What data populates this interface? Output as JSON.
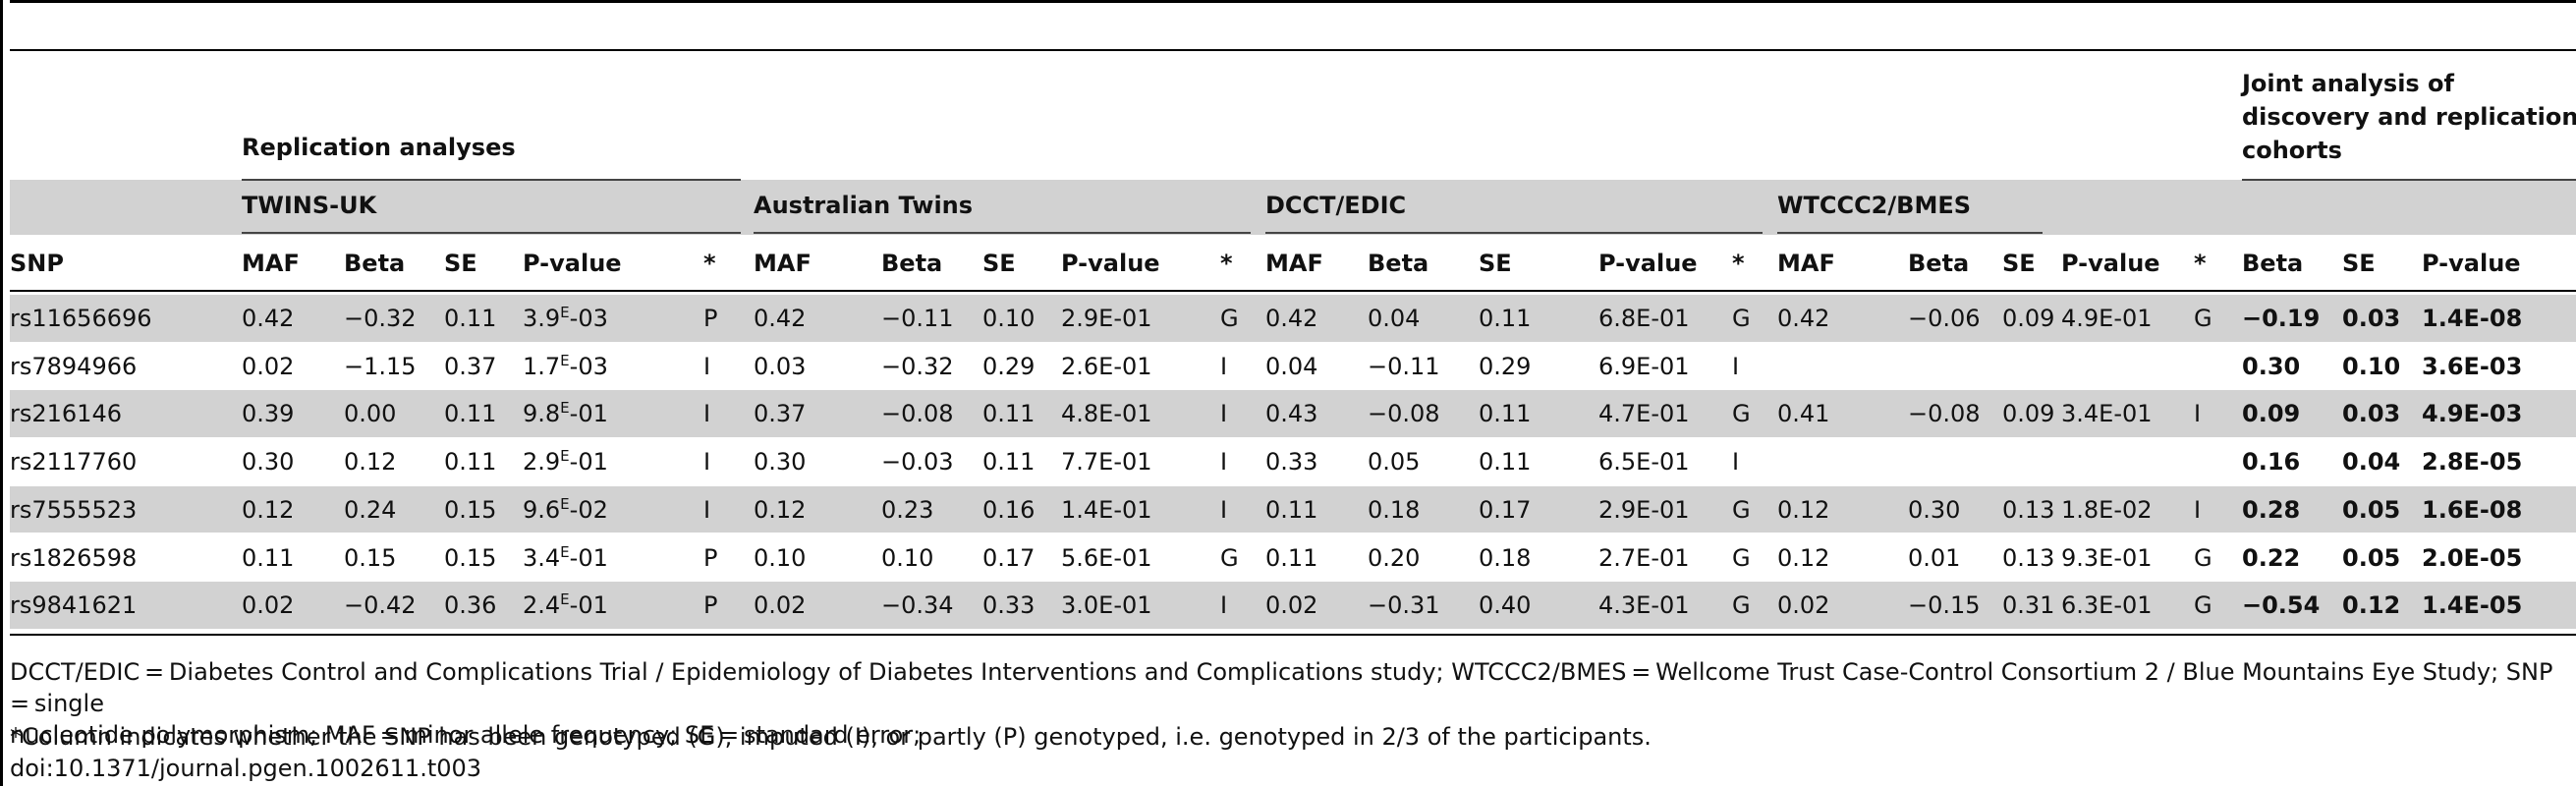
{
  "groups": {
    "replication": "Replication analyses",
    "joint": "Joint analysis of discovery and replication cohorts",
    "joint_lines": [
      "Joint analysis of",
      "discovery and replication",
      "cohorts"
    ],
    "twins_uk": "TWINS-UK",
    "australian": "Australian Twins",
    "dcct": "DCCT/EDIC",
    "wtccc": "WTCCC2/BMES"
  },
  "headers": [
    "SNP",
    "MAF",
    "Beta",
    "SE",
    "P-value",
    "*",
    "MAF",
    "Beta",
    "SE",
    "P-value",
    "*",
    "MAF",
    "Beta",
    "SE",
    "P-value",
    "*",
    "MAF",
    "Beta",
    "SE",
    "P-value",
    "*",
    "Beta",
    "SE",
    "P-value"
  ],
  "rows": [
    {
      "snp": "rs11656696",
      "cells": [
        "0.42",
        "−0.32",
        "0.11",
        [
          "3.9",
          "E",
          "-03"
        ],
        "P",
        "0.42",
        "−0.11",
        "0.10",
        "2.9E-01",
        "G",
        "0.42",
        "0.04",
        "0.11",
        "6.8E-01",
        "G",
        "0.42",
        "−0.06",
        "0.09",
        "4.9E-01",
        "G",
        "−0.19",
        "0.03",
        "1.4E-08"
      ]
    },
    {
      "snp": "rs7894966",
      "cells": [
        "0.02",
        "−1.15",
        "0.37",
        [
          "1.7",
          "E",
          "-03"
        ],
        "I",
        "0.03",
        "−0.32",
        "0.29",
        "2.6E-01",
        "I",
        "0.04",
        "−0.11",
        "0.29",
        "6.9E-01",
        "I",
        "",
        "",
        "",
        "",
        "",
        "0.30",
        "0.10",
        "3.6E-03"
      ]
    },
    {
      "snp": "rs216146",
      "cells": [
        "0.39",
        "0.00",
        "0.11",
        [
          "9.8",
          "E",
          "-01"
        ],
        "I",
        "0.37",
        "−0.08",
        "0.11",
        "4.8E-01",
        "I",
        "0.43",
        "−0.08",
        "0.11",
        "4.7E-01",
        "G",
        "0.41",
        "−0.08",
        "0.09",
        "3.4E-01",
        "I",
        "0.09",
        "0.03",
        "4.9E-03"
      ]
    },
    {
      "snp": "rs2117760",
      "cells": [
        "0.30",
        "0.12",
        "0.11",
        [
          "2.9",
          "E",
          "-01"
        ],
        "I",
        "0.30",
        "−0.03",
        "0.11",
        "7.7E-01",
        "I",
        "0.33",
        "0.05",
        "0.11",
        "6.5E-01",
        "I",
        "",
        "",
        "",
        "",
        "",
        "0.16",
        "0.04",
        "2.8E-05"
      ]
    },
    {
      "snp": "rs7555523",
      "cells": [
        "0.12",
        "0.24",
        "0.15",
        [
          "9.6",
          "E",
          "-02"
        ],
        "I",
        "0.12",
        "0.23",
        "0.16",
        "1.4E-01",
        "I",
        "0.11",
        "0.18",
        "0.17",
        "2.9E-01",
        "G",
        "0.12",
        "0.30",
        "0.13",
        "1.8E-02",
        "I",
        "0.28",
        "0.05",
        "1.6E-08"
      ]
    },
    {
      "snp": "rs1826598",
      "cells": [
        "0.11",
        "0.15",
        "0.15",
        [
          "3.4",
          "E",
          "-01"
        ],
        "P",
        "0.10",
        "0.10",
        "0.17",
        "5.6E-01",
        "G",
        "0.11",
        "0.20",
        "0.18",
        "2.7E-01",
        "G",
        "0.12",
        "0.01",
        "0.13",
        "9.3E-01",
        "G",
        "0.22",
        "0.05",
        "2.0E-05"
      ]
    },
    {
      "snp": "rs9841621",
      "cells": [
        "0.02",
        "−0.42",
        "0.36",
        [
          "2.4",
          "E",
          "-01"
        ],
        "P",
        "0.02",
        "−0.34",
        "0.33",
        "3.0E-01",
        "I",
        "0.02",
        "−0.31",
        "0.40",
        "4.3E-01",
        "G",
        "0.02",
        "−0.15",
        "0.31",
        "6.3E-01",
        "G",
        "−0.54",
        "0.12",
        "1.4E-05"
      ]
    }
  ],
  "footnotes": {
    "abbrev_line1": "DCCT/EDIC = Diabetes Control and Complications Trial / Epidemiology of Diabetes Interventions and Complications study; WTCCC2/BMES = Wellcome Trust Case-Control Consortium 2 / Blue Mountains Eye Study; SNP = single",
    "abbrev_line2": "nucleotide polymorphism; MAF = minor allele frequency; SE = standard error;",
    "star": "*Column indicates whether the SNP has been genotyped (G), imputed (I), or partly (P) genotyped, i.e. genotyped in 2/3 of the participants.",
    "doi": "doi:10.1371/journal.pgen.1002611.t003"
  }
}
